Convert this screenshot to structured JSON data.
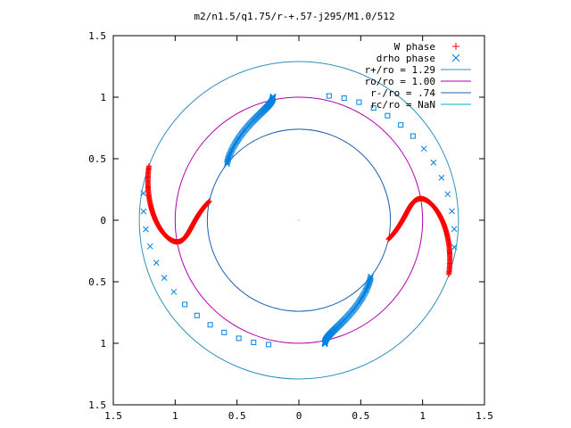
{
  "chart_data": {
    "type": "scatter",
    "title": "m2/n1.5/q1.75/r-+.57-j295/M1.0/512",
    "xlabel": "",
    "ylabel": "",
    "xlim": [
      -1.5,
      1.5
    ],
    "ylim": [
      -1.5,
      1.5
    ],
    "x_ticks": [
      -1.5,
      -1,
      -0.5,
      0,
      0.5,
      1,
      1.5
    ],
    "x_tick_labels": [
      "1.5",
      "1",
      "0.5",
      "0",
      "0.5",
      "1",
      "1.5"
    ],
    "y_ticks": [
      1.5,
      1,
      0.5,
      0,
      -0.5,
      -1,
      -1.5
    ],
    "y_tick_labels": [
      "1.5",
      "1",
      "0.5",
      "0",
      "0.5",
      "1",
      "1.5"
    ],
    "grid": false,
    "legend_position": "top-right",
    "colors": {
      "w_phase": "#ff0000",
      "drho_phase": "#0080e0",
      "circle_outer": "#3090c0",
      "circle_middle": "#b000b0",
      "circle_inner": "#2060b0",
      "circle_rc": "#00b0c0"
    },
    "legend": [
      {
        "label": "W phase",
        "marker": "plus",
        "color": "#ff0000"
      },
      {
        "label": "drho phase",
        "marker": "cross",
        "color": "#0080e0"
      },
      {
        "label": "r+/ro = 1.29",
        "marker": "line",
        "color": "#3090c0"
      },
      {
        "label": "ro/ro = 1.00",
        "marker": "line",
        "color": "#b000b0"
      },
      {
        "label": "r-/ro = .74",
        "marker": "line",
        "color": "#2060b0"
      },
      {
        "label": "rc/ro = NaN",
        "marker": "line",
        "color": "#00b0c0"
      }
    ],
    "circles": [
      {
        "name": "r+/ro",
        "radius": 1.29
      },
      {
        "name": "ro/ro",
        "radius": 1.0
      },
      {
        "name": "r-/ro",
        "radius": 0.74
      }
    ],
    "spirals": {
      "w_phase": {
        "r_in": 0.74,
        "r_out": 1.29,
        "theta_start_deg": 0,
        "theta_end_deg": 90,
        "arms_deg": [
          0,
          180
        ],
        "wiggle_deg": 45,
        "points_per_arm": 260
      },
      "drho_phase": {
        "r_in": 0.74,
        "r_out": 1.29,
        "theta_start_deg": 90,
        "theta_end_deg": -45,
        "arms_deg": [
          0,
          180
        ],
        "points_per_arm": 160
      }
    }
  }
}
